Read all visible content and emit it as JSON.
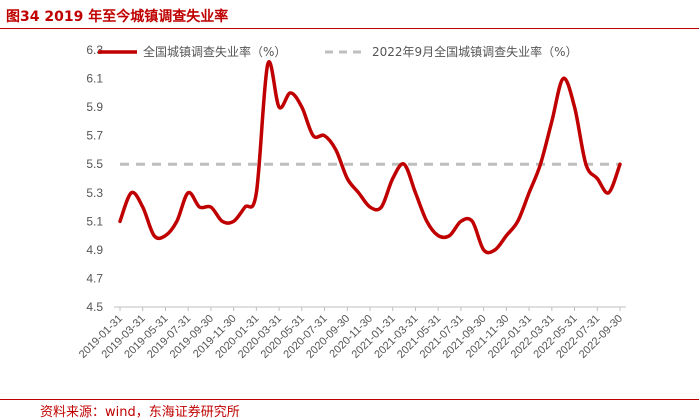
{
  "figure_title": "图34  2019 年至今城镇调查失业率",
  "source": "资料来源：wind，东海证券研究所",
  "colors": {
    "series": "#c00000",
    "reference": "#bfbfbf",
    "title": "#c00000",
    "axis": "#bfbfbf",
    "tick_text": "#555555"
  },
  "chart_data": {
    "type": "line",
    "title": "",
    "xlabel": "",
    "ylabel": "",
    "ylim": [
      4.5,
      6.3
    ],
    "yticks": [
      4.5,
      4.7,
      4.9,
      5.1,
      5.3,
      5.5,
      5.7,
      5.9,
      6.1,
      6.3
    ],
    "grid": false,
    "legend_position": "top",
    "x_tick_labels": [
      "2019-01-31",
      "2019-03-31",
      "2019-05-31",
      "2019-07-31",
      "2019-09-30",
      "2019-11-30",
      "2020-01-31",
      "2020-03-31",
      "2020-05-31",
      "2020-07-31",
      "2020-09-30",
      "2020-11-30",
      "2021-01-31",
      "2021-03-31",
      "2021-05-31",
      "2021-07-31",
      "2021-09-30",
      "2021-11-30",
      "2022-01-31",
      "2022-03-31",
      "2022-05-31",
      "2022-07-31",
      "2022-09-30"
    ],
    "x": [
      "2019-01-31",
      "2019-02-28",
      "2019-03-31",
      "2019-04-30",
      "2019-05-31",
      "2019-06-30",
      "2019-07-31",
      "2019-08-31",
      "2019-09-30",
      "2019-10-31",
      "2019-11-30",
      "2019-12-31",
      "2020-01-31",
      "2020-02-29",
      "2020-03-31",
      "2020-04-30",
      "2020-05-31",
      "2020-06-30",
      "2020-07-31",
      "2020-08-31",
      "2020-09-30",
      "2020-10-31",
      "2020-11-30",
      "2020-12-31",
      "2021-01-31",
      "2021-02-28",
      "2021-03-31",
      "2021-04-30",
      "2021-05-31",
      "2021-06-30",
      "2021-07-31",
      "2021-08-31",
      "2021-09-30",
      "2021-10-31",
      "2021-11-30",
      "2021-12-31",
      "2022-01-31",
      "2022-02-28",
      "2022-03-31",
      "2022-04-30",
      "2022-05-31",
      "2022-06-30",
      "2022-07-31",
      "2022-08-31",
      "2022-09-30"
    ],
    "series": [
      {
        "name": "全国城镇调查失业率（%）",
        "style": "solid",
        "values": [
          5.1,
          5.3,
          5.2,
          5.0,
          5.0,
          5.1,
          5.3,
          5.2,
          5.2,
          5.1,
          5.1,
          5.2,
          5.3,
          6.2,
          5.9,
          6.0,
          5.9,
          5.7,
          5.7,
          5.6,
          5.4,
          5.3,
          5.2,
          5.2,
          5.4,
          5.5,
          5.3,
          5.1,
          5.0,
          5.0,
          5.1,
          5.1,
          4.9,
          4.9,
          5.0,
          5.1,
          5.3,
          5.5,
          5.8,
          6.1,
          5.9,
          5.5,
          5.4,
          5.3,
          5.5
        ]
      },
      {
        "name": "2022年9月全国城镇调查失业率（%）",
        "style": "dashed",
        "value": 5.5
      }
    ]
  }
}
